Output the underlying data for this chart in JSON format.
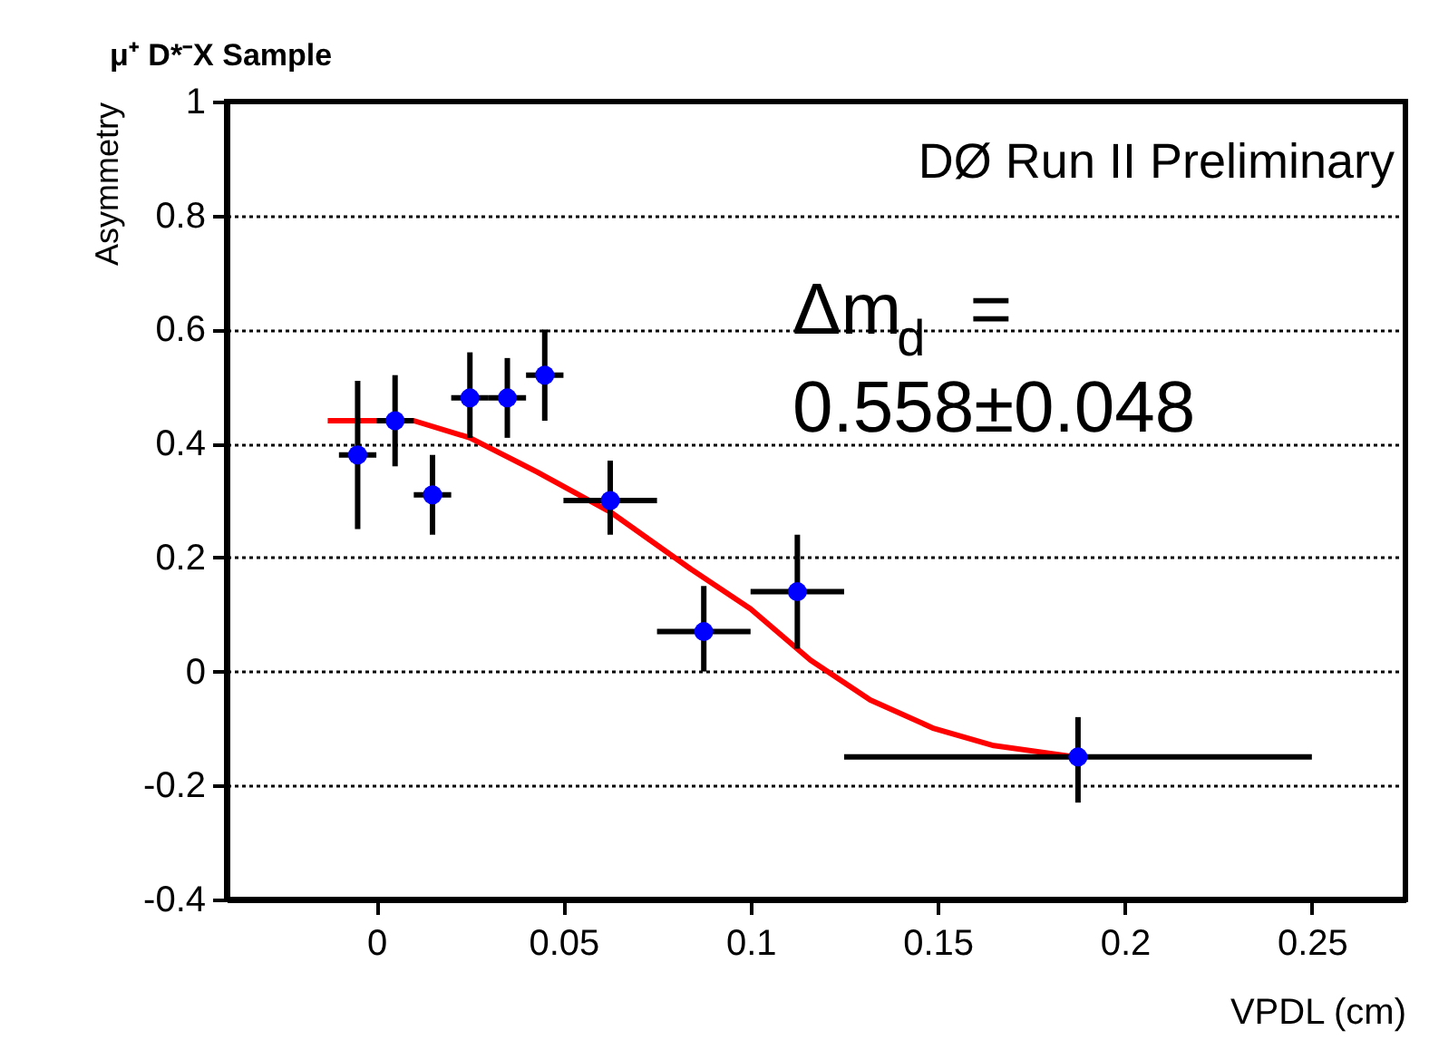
{
  "chart_data": {
    "type": "scatter",
    "title": "μ⁺ D*⁻X Sample",
    "xlabel": "VPDL (cm)",
    "ylabel": "Asymmetry",
    "annotations": [
      "DØ Run II Preliminary",
      "Δm$_{d}$ =",
      "0.558±0.048"
    ],
    "xlim": [
      -0.04,
      0.275
    ],
    "xticks": [
      0,
      0.05,
      0.1,
      0.15,
      0.2,
      0.25
    ],
    "ylim": [
      -0.4,
      1
    ],
    "yticks": [
      -0.4,
      -0.2,
      0,
      0.2,
      0.4,
      0.6,
      0.8,
      1
    ],
    "grid": "y",
    "series": [
      {
        "type": "scatter",
        "marker": "circle",
        "color": "#0000ff",
        "x": [
          -0.005,
          0.005,
          0.015,
          0.025,
          0.035,
          0.045,
          0.0625,
          0.0875,
          0.1125,
          0.1875
        ],
        "values": [
          0.38,
          0.44,
          0.31,
          0.48,
          0.48,
          0.52,
          0.3,
          0.07,
          0.14,
          -0.15
        ],
        "errors": [
          [
            0.25,
            0.51
          ],
          [
            0.36,
            0.52
          ],
          [
            0.24,
            0.38
          ],
          [
            0.41,
            0.56
          ],
          [
            0.41,
            0.55
          ],
          [
            0.44,
            0.6
          ],
          [
            0.24,
            0.37
          ],
          [
            0.0,
            0.15
          ],
          [
            0.04,
            0.24
          ],
          [
            -0.23,
            -0.08
          ]
        ],
        "xerrors": [
          0.005,
          0.005,
          0.005,
          0.005,
          0.005,
          0.005,
          0.0125,
          0.0125,
          0.0125,
          0.0625
        ]
      },
      {
        "type": "line",
        "color": "#ff0000",
        "line_style": "solid",
        "x": [
          -0.013,
          0.01,
          0.025,
          0.043,
          0.0625,
          0.084,
          0.1,
          0.116,
          0.132,
          0.149,
          0.165,
          0.187
        ],
        "values": [
          0.44,
          0.44,
          0.41,
          0.35,
          0.28,
          0.18,
          0.11,
          0.02,
          -0.05,
          -0.1,
          -0.13,
          -0.15
        ]
      }
    ]
  }
}
